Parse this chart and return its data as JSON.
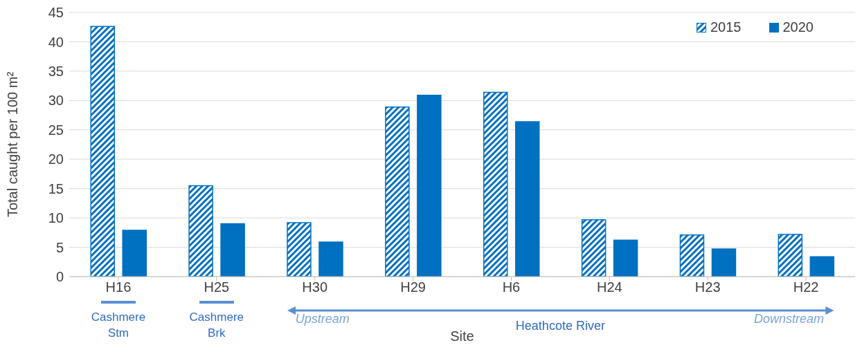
{
  "chart_data": {
    "type": "bar",
    "xlabel": "Site",
    "ylabel": "Total caught per 100 m²",
    "categories": [
      "H16",
      "H25",
      "H30",
      "H29",
      "H6",
      "H24",
      "H23",
      "H22"
    ],
    "series": [
      {
        "name": "2015",
        "color": "#0070c0",
        "values": [
          42.6,
          15.5,
          9.2,
          28.9,
          31.4,
          9.7,
          7.1,
          7.2
        ]
      },
      {
        "name": "2020",
        "color": "#0070c0",
        "values": [
          7.9,
          9.0,
          5.9,
          30.9,
          26.4,
          6.2,
          4.7,
          3.4
        ]
      }
    ],
    "ylim": [
      0,
      45
    ],
    "yticks": [
      0,
      5,
      10,
      15,
      20,
      25,
      30,
      35,
      40,
      45
    ],
    "grid": "y",
    "legend": "top right",
    "annotations": [
      "Cashmere Stm",
      "Cashmere Brk",
      "Upstream",
      "Heathcote River",
      "Downstream"
    ]
  }
}
